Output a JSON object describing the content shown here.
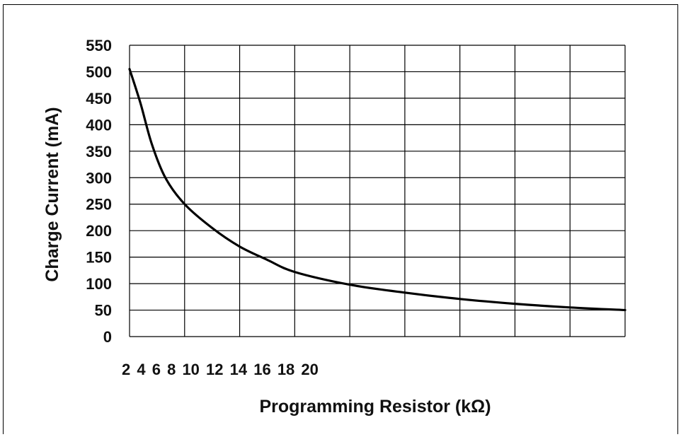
{
  "chart_data": {
    "type": "line",
    "title": "",
    "xlabel": "Programming Resistor (kΩ)",
    "ylabel": "Charge Current (mA)",
    "x_tick_labels": [
      "2",
      "4",
      "6",
      "8",
      "10",
      "12",
      "14",
      "16",
      "18",
      "20"
    ],
    "y_ticks": [
      0,
      50,
      100,
      150,
      200,
      250,
      300,
      350,
      400,
      450,
      500,
      550
    ],
    "ylim": [
      0,
      550
    ],
    "x_gridlines": 9,
    "grid": true,
    "legend": "none",
    "series": [
      {
        "color": "#000000",
        "points": [
          {
            "x": 0.0,
            "y": 505
          },
          {
            "x": 0.2,
            "y": 440
          },
          {
            "x": 0.4,
            "y": 365
          },
          {
            "x": 0.65,
            "y": 300
          },
          {
            "x": 1.0,
            "y": 250
          },
          {
            "x": 1.5,
            "y": 205
          },
          {
            "x": 2.0,
            "y": 170
          },
          {
            "x": 2.5,
            "y": 145
          },
          {
            "x": 3.0,
            "y": 122
          },
          {
            "x": 4.0,
            "y": 98
          },
          {
            "x": 5.0,
            "y": 83
          },
          {
            "x": 6.0,
            "y": 71
          },
          {
            "x": 7.0,
            "y": 62
          },
          {
            "x": 8.0,
            "y": 55
          },
          {
            "x": 9.0,
            "y": 50
          }
        ]
      }
    ]
  }
}
